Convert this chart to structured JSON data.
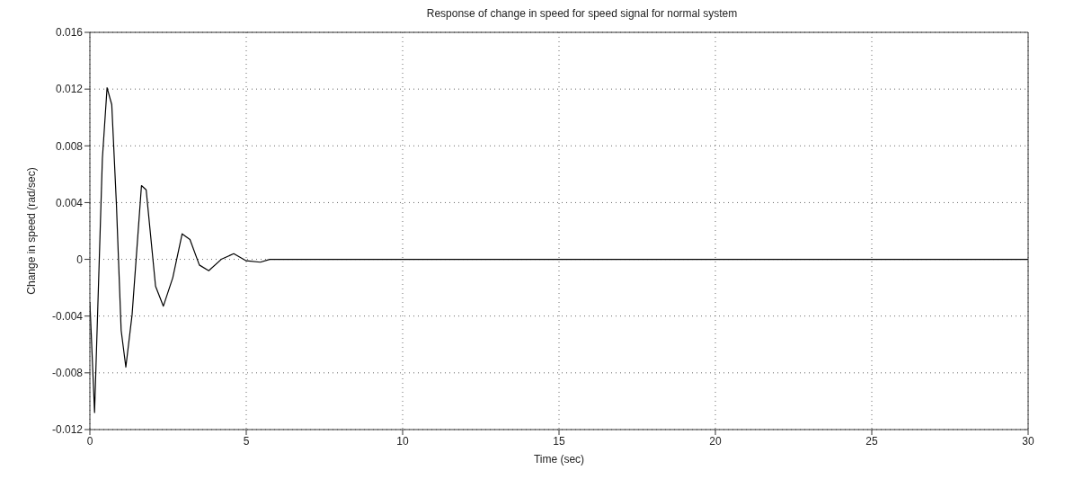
{
  "chart_data": {
    "type": "line",
    "title": "Response of change in speed for speed signal for normal system",
    "xlabel": "Time (sec)",
    "ylabel": "Change in speed (rad/sec)",
    "x": [
      0,
      0.15,
      0.4,
      0.55,
      0.7,
      0.85,
      1.0,
      1.15,
      1.35,
      1.65,
      1.8,
      2.1,
      2.35,
      2.65,
      2.95,
      3.2,
      3.5,
      3.8,
      4.2,
      4.6,
      5.0,
      5.45,
      5.75,
      10,
      20,
      30
    ],
    "series": [
      {
        "color": "#000000",
        "values": [
          -0.003,
          -0.0108,
          0.0071,
          0.0121,
          0.0109,
          0.0038,
          -0.005,
          -0.0076,
          -0.0039,
          0.0052,
          0.0049,
          -0.0019,
          -0.0033,
          -0.0013,
          0.0018,
          0.0014,
          -0.0004,
          -0.0008,
          0,
          0.0004,
          -0.0001,
          -0.0002,
          0,
          0,
          0,
          0
        ]
      }
    ],
    "xlim": [
      0,
      30
    ],
    "xticks": [
      0,
      5,
      10,
      15,
      20,
      25,
      30
    ],
    "ylim": [
      -0.012,
      0.016
    ],
    "yticks": [
      -0.012,
      -0.008,
      -0.004,
      0,
      0.004,
      0.008,
      0.012,
      0.016
    ],
    "grid": true,
    "line_style": "solid",
    "marker": "none",
    "legend": false
  }
}
